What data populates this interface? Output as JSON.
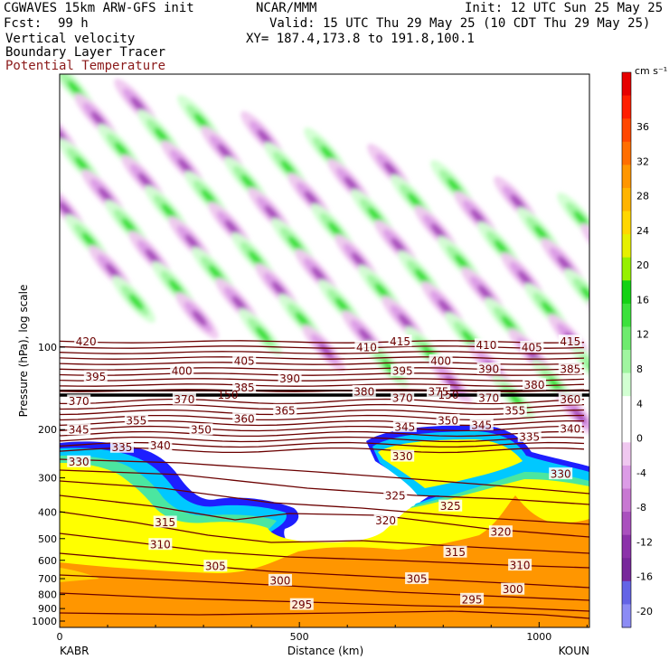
{
  "header": {
    "model": "CGWAVES 15km ARW-GFS init",
    "org": "NCAR/MMM",
    "init": "Init: 12 UTC Sun 25 May 25",
    "fcst_label": "Fcst:",
    "fcst_value": "99 h",
    "valid": "Valid: 15 UTC Thu 29 May 25 (10 CDT Thu 29 May 25)",
    "field1": "Vertical velocity",
    "xy": "XY= 187.4,173.8 to 191.8,100.1",
    "field2": "Boundary Layer Tracer",
    "field3": "Potential Temperature"
  },
  "colors": {
    "potential_temperature": "#6b0000",
    "boundary_layer_scale": [
      "#ffffff",
      "#1e1eff",
      "#00c8ff",
      "#4be6a0",
      "#ffff00",
      "#ff9600"
    ],
    "velocity_scale": {
      "positive": [
        "#d2ffd2",
        "#a0f5a0",
        "#6eeb6e",
        "#3ce13c",
        "#14d214",
        "#96f000",
        "#e6f000",
        "#ffd700",
        "#ffb400",
        "#ff9600",
        "#ff6e00",
        "#ff4600",
        "#ff1e00",
        "#e60000"
      ],
      "negative": [
        "#f0c8f0",
        "#dc9ce6",
        "#c878d2",
        "#aa50be",
        "#8c32aa",
        "#78289b",
        "#6464e6",
        "#8c8cf5"
      ]
    }
  },
  "chart_data": {
    "type": "heatmap",
    "title": "Vertical velocity / Boundary Layer Tracer / Potential Temperature",
    "xlabel": "Distance (km)",
    "ylabel": "Pressure (hPa), log scale",
    "x_ticks": [
      0,
      500,
      1000
    ],
    "x_range": [
      0,
      1105
    ],
    "x_endpoints": [
      "KABR",
      "KOUN"
    ],
    "y_ticks": [
      100,
      200,
      300,
      400,
      500,
      600,
      700,
      800,
      900,
      1000
    ],
    "y_scale": "log",
    "y_range": [
      1000,
      30
    ],
    "colorbar": {
      "units": "cm s⁻¹",
      "labels": [
        "36",
        "32",
        "28",
        "24",
        "20",
        "16",
        "12",
        "8",
        "4",
        "0",
        "-4",
        "-8",
        "-12",
        "-16",
        "-20"
      ]
    },
    "tropopause_pressure": 150,
    "contour_labels": [
      {
        "text": "420",
        "x": 55,
        "p": 95
      },
      {
        "text": "415",
        "x": 710,
        "p": 95
      },
      {
        "text": "410",
        "x": 640,
        "p": 100
      },
      {
        "text": "410",
        "x": 890,
        "p": 98
      },
      {
        "text": "405",
        "x": 985,
        "p": 100
      },
      {
        "text": "415",
        "x": 1065,
        "p": 95
      },
      {
        "text": "405",
        "x": 385,
        "p": 112
      },
      {
        "text": "400",
        "x": 255,
        "p": 122
      },
      {
        "text": "400",
        "x": 795,
        "p": 112
      },
      {
        "text": "395",
        "x": 75,
        "p": 128
      },
      {
        "text": "395",
        "x": 715,
        "p": 122
      },
      {
        "text": "390",
        "x": 480,
        "p": 130
      },
      {
        "text": "390",
        "x": 895,
        "p": 120
      },
      {
        "text": "385",
        "x": 385,
        "p": 140
      },
      {
        "text": "385",
        "x": 1065,
        "p": 120
      },
      {
        "text": "380",
        "x": 635,
        "p": 145
      },
      {
        "text": "380",
        "x": 990,
        "p": 137
      },
      {
        "text": "375",
        "x": 790,
        "p": 145
      },
      {
        "text": "370",
        "x": 40,
        "p": 157
      },
      {
        "text": "370",
        "x": 260,
        "p": 155
      },
      {
        "text": "370",
        "x": 715,
        "p": 153
      },
      {
        "text": "370",
        "x": 895,
        "p": 153
      },
      {
        "text": "360",
        "x": 1065,
        "p": 155
      },
      {
        "text": "365",
        "x": 470,
        "p": 170
      },
      {
        "text": "360",
        "x": 385,
        "p": 182
      },
      {
        "text": "355",
        "x": 160,
        "p": 185
      },
      {
        "text": "355",
        "x": 950,
        "p": 170
      },
      {
        "text": "350",
        "x": 810,
        "p": 185
      },
      {
        "text": "350",
        "x": 295,
        "p": 200
      },
      {
        "text": "345",
        "x": 40,
        "p": 200
      },
      {
        "text": "345",
        "x": 720,
        "p": 195
      },
      {
        "text": "345",
        "x": 880,
        "p": 192
      },
      {
        "text": "340",
        "x": 210,
        "p": 228
      },
      {
        "text": "340",
        "x": 1065,
        "p": 198
      },
      {
        "text": "335",
        "x": 130,
        "p": 232
      },
      {
        "text": "335",
        "x": 980,
        "p": 212
      },
      {
        "text": "330",
        "x": 40,
        "p": 262
      },
      {
        "text": "330",
        "x": 715,
        "p": 250
      },
      {
        "text": "330",
        "x": 1045,
        "p": 290
      },
      {
        "text": "325",
        "x": 700,
        "p": 348
      },
      {
        "text": "325",
        "x": 815,
        "p": 380
      },
      {
        "text": "320",
        "x": 680,
        "p": 428
      },
      {
        "text": "320",
        "x": 920,
        "p": 472
      },
      {
        "text": "315",
        "x": 220,
        "p": 435
      },
      {
        "text": "315",
        "x": 825,
        "p": 560
      },
      {
        "text": "310",
        "x": 210,
        "p": 525
      },
      {
        "text": "310",
        "x": 960,
        "p": 625
      },
      {
        "text": "305",
        "x": 325,
        "p": 630
      },
      {
        "text": "305",
        "x": 745,
        "p": 700
      },
      {
        "text": "300",
        "x": 460,
        "p": 710
      },
      {
        "text": "300",
        "x": 945,
        "p": 765
      },
      {
        "text": "295",
        "x": 505,
        "p": 870
      },
      {
        "text": "295",
        "x": 860,
        "p": 832
      }
    ]
  }
}
